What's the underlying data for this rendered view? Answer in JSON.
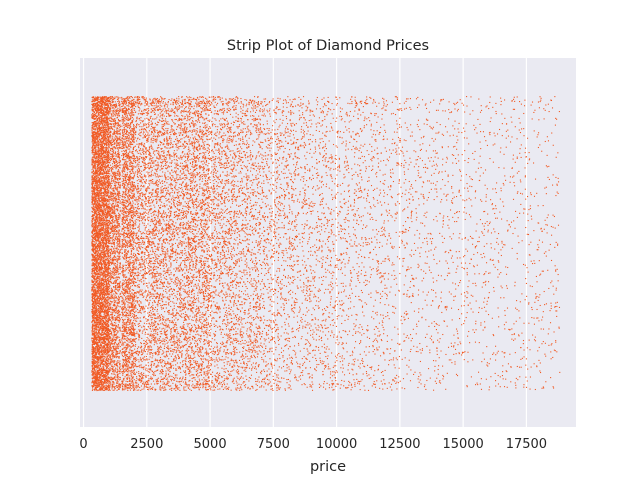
{
  "chart_data": {
    "type": "scatter",
    "variant": "strip",
    "title": "Strip Plot of Diamond Prices",
    "xlabel": "price",
    "ylabel": "",
    "xlim": [
      -140,
      19460
    ],
    "x_ticks": [
      0,
      2500,
      5000,
      7500,
      10000,
      12500,
      15000,
      17500
    ],
    "x_tick_labels": [
      "0",
      "2500",
      "5000",
      "7500",
      "10000",
      "12500",
      "15000",
      "17500"
    ],
    "value_range": [
      326,
      18823
    ],
    "gap_near_value": 1480,
    "grid": true,
    "legend": "none",
    "colors": {
      "points": "#f15a24",
      "axes_background": "#eaeaf2",
      "grid": "#ffffff",
      "text": "#262626"
    },
    "price_distribution": [
      {
        "range": [
          326,
          1000
        ],
        "share": 0.26
      },
      {
        "range": [
          1000,
          2000
        ],
        "share": 0.18
      },
      {
        "range": [
          2000,
          3000
        ],
        "share": 0.09
      },
      {
        "range": [
          3000,
          4000
        ],
        "share": 0.08
      },
      {
        "range": [
          4000,
          5000
        ],
        "share": 0.09
      },
      {
        "range": [
          5000,
          6000
        ],
        "share": 0.06
      },
      {
        "range": [
          6000,
          7000
        ],
        "share": 0.05
      },
      {
        "range": [
          7000,
          8000
        ],
        "share": 0.035
      },
      {
        "range": [
          8000,
          9000
        ],
        "share": 0.03
      },
      {
        "range": [
          9000,
          10000
        ],
        "share": 0.025
      },
      {
        "range": [
          10000,
          11000
        ],
        "share": 0.022
      },
      {
        "range": [
          11000,
          12000
        ],
        "share": 0.018
      },
      {
        "range": [
          12000,
          13000
        ],
        "share": 0.015
      },
      {
        "range": [
          13000,
          14000
        ],
        "share": 0.012
      },
      {
        "range": [
          14000,
          15000
        ],
        "share": 0.011
      },
      {
        "range": [
          15000,
          16000
        ],
        "share": 0.01
      },
      {
        "range": [
          16000,
          17000
        ],
        "share": 0.009
      },
      {
        "range": [
          17000,
          18000
        ],
        "share": 0.009
      },
      {
        "range": [
          18000,
          18823
        ],
        "share": 0.007
      }
    ]
  }
}
